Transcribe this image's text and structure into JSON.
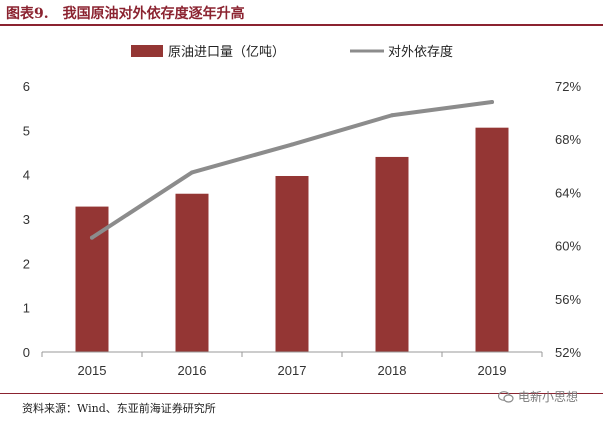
{
  "header": {
    "figure_number": "图表9.",
    "title": "我国原油对外依存度逐年升高"
  },
  "footer": {
    "source": "资料来源：Wind、东亚前海证券研究所",
    "watermark": "电新小思想"
  },
  "chart_data": {
    "type": "bar",
    "categories": [
      "2015",
      "2016",
      "2017",
      "2018",
      "2019"
    ],
    "series": [
      {
        "name": "原油进口量（亿吨）",
        "type": "bar",
        "axis": "left",
        "color": "#943634",
        "values": [
          3.28,
          3.57,
          3.97,
          4.4,
          5.06
        ]
      },
      {
        "name": "对外依存度",
        "type": "line",
        "axis": "right",
        "color": "#8c8c8c",
        "values": [
          60.6,
          65.5,
          67.6,
          69.8,
          70.8
        ],
        "unit": "%"
      }
    ],
    "left_axis": {
      "ylim": [
        0,
        6
      ],
      "ticks": [
        "0",
        "1",
        "2",
        "3",
        "4",
        "5",
        "6"
      ]
    },
    "right_axis": {
      "ylim": [
        52,
        72
      ],
      "ticks": [
        "52%",
        "56%",
        "60%",
        "64%",
        "68%",
        "72%"
      ]
    },
    "legend_position": "top-center",
    "grid": false
  }
}
